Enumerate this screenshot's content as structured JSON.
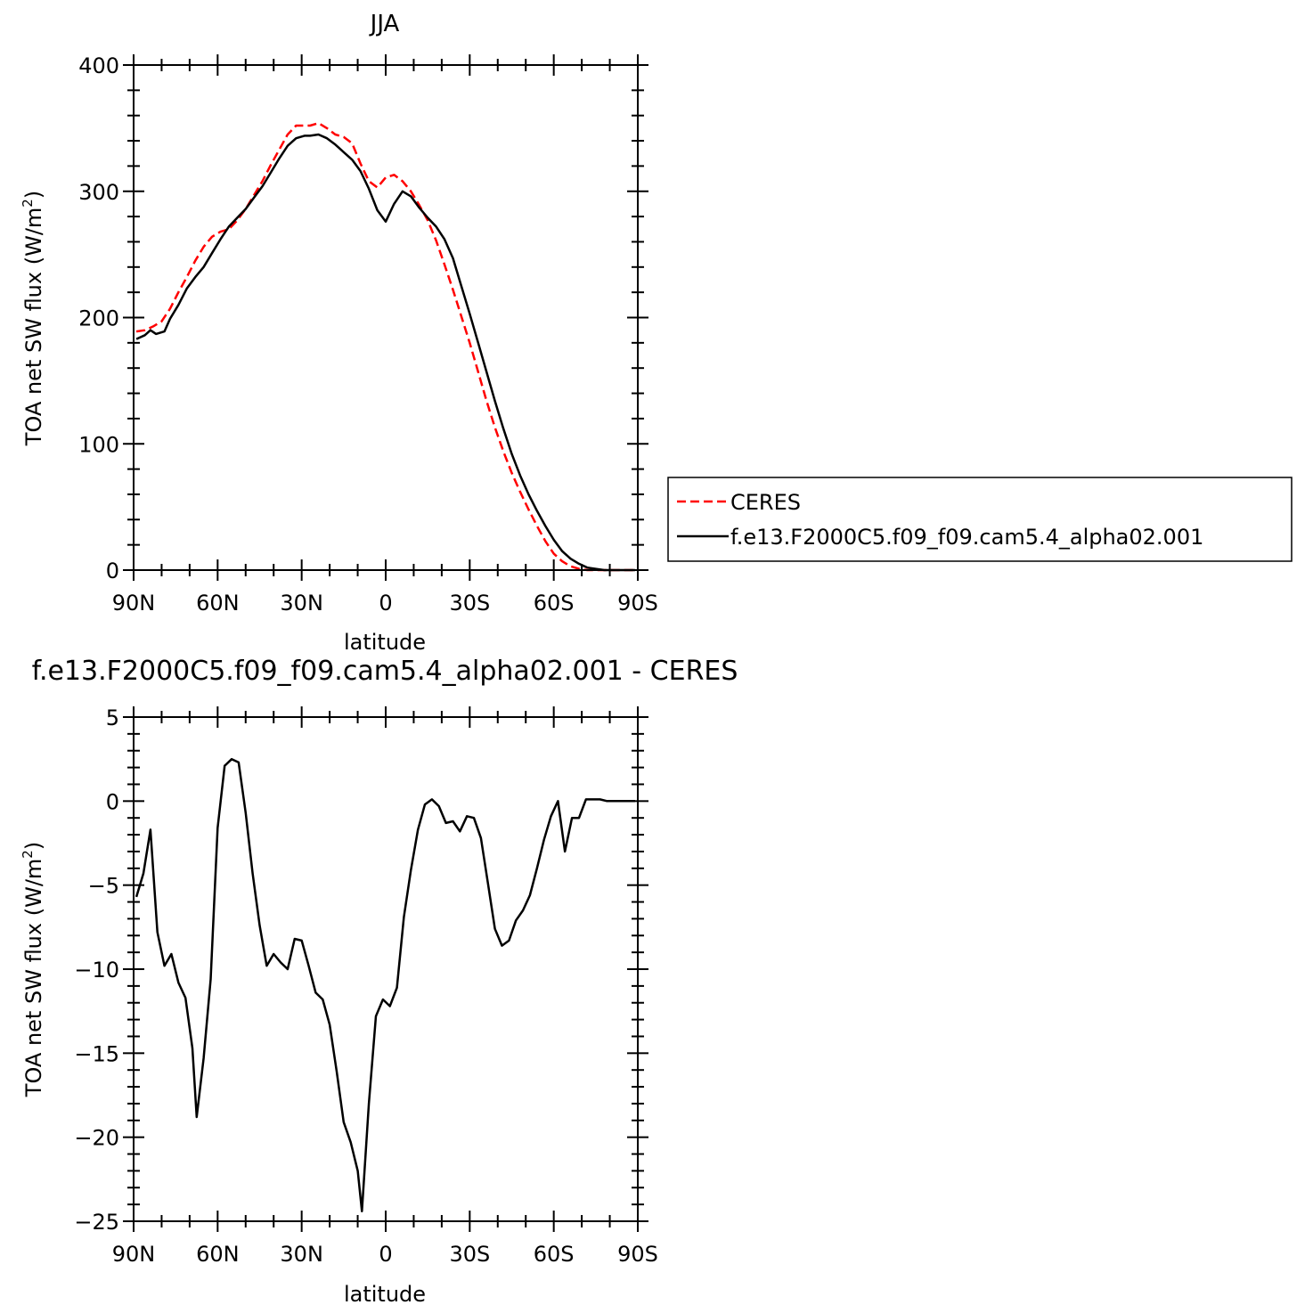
{
  "chart_data": [
    {
      "type": "line",
      "title": "JJA",
      "xlabel": "latitude",
      "ylabel": "TOA net SW flux (W/m²)",
      "ylabel_main": "TOA net SW flux (W/m",
      "ylabel_sup": "2",
      "ylabel_tail": ")",
      "xlim": [
        90,
        -90
      ],
      "ylim": [
        0,
        400
      ],
      "xticks": [
        {
          "value": 90,
          "label": "90N"
        },
        {
          "value": 60,
          "label": "60N"
        },
        {
          "value": 30,
          "label": "30N"
        },
        {
          "value": 0,
          "label": "0"
        },
        {
          "value": -30,
          "label": "30S"
        },
        {
          "value": -60,
          "label": "60S"
        },
        {
          "value": -90,
          "label": "90S"
        }
      ],
      "yticks": [
        {
          "value": 0,
          "label": "0"
        },
        {
          "value": 100,
          "label": "100"
        },
        {
          "value": 200,
          "label": "200"
        },
        {
          "value": 300,
          "label": "300"
        },
        {
          "value": 400,
          "label": "400"
        }
      ],
      "legend_position": "right",
      "series": [
        {
          "name": "CERES",
          "color": "#ff0000",
          "dash": "dashed",
          "points": [
            [
              89,
              189
            ],
            [
              86,
              190
            ],
            [
              83,
              193
            ],
            [
              80,
              197
            ],
            [
              77,
              207
            ],
            [
              74,
              220
            ],
            [
              71,
              232
            ],
            [
              68,
              245
            ],
            [
              65,
              256
            ],
            [
              62,
              264
            ],
            [
              59,
              268
            ],
            [
              56,
              270
            ],
            [
              53,
              277
            ],
            [
              50,
              286
            ],
            [
              47,
              297
            ],
            [
              44,
              308
            ],
            [
              41,
              321
            ],
            [
              38,
              333
            ],
            [
              35,
              345
            ],
            [
              32,
              352
            ],
            [
              29,
              352
            ],
            [
              27,
              352
            ],
            [
              24,
              354
            ],
            [
              21,
              350
            ],
            [
              18,
              345
            ],
            [
              15,
              343
            ],
            [
              12,
              338
            ],
            [
              9,
              322
            ],
            [
              6,
              308
            ],
            [
              3,
              303
            ],
            [
              0,
              311
            ],
            [
              -3,
              313
            ],
            [
              -6,
              308
            ],
            [
              -9,
              300
            ],
            [
              -12,
              289
            ],
            [
              -15,
              277
            ],
            [
              -18,
              261
            ],
            [
              -21,
              242
            ],
            [
              -24,
              222
            ],
            [
              -27,
              201
            ],
            [
              -30,
              180
            ],
            [
              -33,
              157
            ],
            [
              -36,
              134
            ],
            [
              -39,
              113
            ],
            [
              -42,
              94
            ],
            [
              -45,
              77
            ],
            [
              -48,
              62
            ],
            [
              -51,
              48
            ],
            [
              -54,
              35
            ],
            [
              -57,
              23
            ],
            [
              -60,
              13
            ],
            [
              -63,
              7
            ],
            [
              -66,
              3
            ],
            [
              -69,
              1
            ],
            [
              -72,
              0
            ],
            [
              -75,
              0
            ],
            [
              -78,
              0
            ],
            [
              -81,
              0
            ],
            [
              -84,
              0
            ],
            [
              -87,
              0
            ],
            [
              -89,
              0
            ]
          ]
        },
        {
          "name": "f.e13.F2000C5.f09_f09.cam5.4_alpha02.001",
          "color": "#000000",
          "dash": "solid",
          "points": [
            [
              89,
              183
            ],
            [
              86,
              186
            ],
            [
              84,
              190
            ],
            [
              82,
              187
            ],
            [
              79,
              189
            ],
            [
              77,
              199
            ],
            [
              74,
              210
            ],
            [
              71,
              223
            ],
            [
              68,
              232
            ],
            [
              65,
              240
            ],
            [
              62,
              251
            ],
            [
              59,
              262
            ],
            [
              56,
              272
            ],
            [
              53,
              279
            ],
            [
              50,
              286
            ],
            [
              47,
              295
            ],
            [
              44,
              304
            ],
            [
              41,
              315
            ],
            [
              38,
              326
            ],
            [
              35,
              336
            ],
            [
              32,
              342
            ],
            [
              29,
              344
            ],
            [
              27,
              344
            ],
            [
              24,
              345
            ],
            [
              21,
              342
            ],
            [
              18,
              337
            ],
            [
              15,
              331
            ],
            [
              12,
              325
            ],
            [
              9,
              316
            ],
            [
              6,
              302
            ],
            [
              3,
              285
            ],
            [
              0,
              276
            ],
            [
              -3,
              290
            ],
            [
              -6,
              300
            ],
            [
              -9,
              296
            ],
            [
              -12,
              287
            ],
            [
              -15,
              279
            ],
            [
              -18,
              272
            ],
            [
              -21,
              262
            ],
            [
              -24,
              247
            ],
            [
              -27,
              225
            ],
            [
              -30,
              203
            ],
            [
              -33,
              180
            ],
            [
              -36,
              157
            ],
            [
              -39,
              134
            ],
            [
              -42,
              112
            ],
            [
              -45,
              92
            ],
            [
              -48,
              75
            ],
            [
              -51,
              60
            ],
            [
              -54,
              47
            ],
            [
              -57,
              35
            ],
            [
              -60,
              24
            ],
            [
              -63,
              15
            ],
            [
              -66,
              9
            ],
            [
              -69,
              5
            ],
            [
              -72,
              2
            ],
            [
              -75,
              1
            ],
            [
              -78,
              0
            ],
            [
              -81,
              0
            ],
            [
              -84,
              0
            ],
            [
              -87,
              0
            ],
            [
              -89,
              0
            ]
          ]
        }
      ]
    },
    {
      "type": "line",
      "title": "f.e13.F2000C5.f09_f09.cam5.4_alpha02.001  -  CERES",
      "xlabel": "latitude",
      "ylabel": "TOA net SW flux (W/m²)",
      "ylabel_main": "TOA net SW flux (W/m",
      "ylabel_sup": "2",
      "ylabel_tail": ")",
      "xlim": [
        90,
        -90
      ],
      "ylim": [
        -25,
        5
      ],
      "xticks": [
        {
          "value": 90,
          "label": "90N"
        },
        {
          "value": 60,
          "label": "60N"
        },
        {
          "value": 30,
          "label": "30N"
        },
        {
          "value": 0,
          "label": "0"
        },
        {
          "value": -30,
          "label": "30S"
        },
        {
          "value": -60,
          "label": "60S"
        },
        {
          "value": -90,
          "label": "90S"
        }
      ],
      "yticks": [
        {
          "value": 5,
          "label": "5"
        },
        {
          "value": 0,
          "label": "0"
        },
        {
          "value": -5,
          "label": "−5"
        },
        {
          "value": -10,
          "label": "−10"
        },
        {
          "value": -15,
          "label": "−15"
        },
        {
          "value": -20,
          "label": "−20"
        },
        {
          "value": -25,
          "label": "−25"
        }
      ],
      "series": [
        {
          "color": "#000000",
          "dash": "solid",
          "points": [
            [
              89,
              -5.7
            ],
            [
              86.5,
              -4.3
            ],
            [
              84,
              -1.7
            ],
            [
              81.5,
              -7.8
            ],
            [
              79,
              -9.8
            ],
            [
              76.5,
              -9.1
            ],
            [
              74,
              -10.8
            ],
            [
              71.5,
              -11.7
            ],
            [
              69,
              -14.7
            ],
            [
              67.5,
              -18.8
            ],
            [
              65,
              -15.3
            ],
            [
              62.5,
              -10.6
            ],
            [
              60,
              -1.6
            ],
            [
              57.5,
              2.1
            ],
            [
              55,
              2.5
            ],
            [
              52.5,
              2.3
            ],
            [
              50,
              -0.7
            ],
            [
              47.5,
              -4.3
            ],
            [
              45,
              -7.4
            ],
            [
              42.5,
              -9.8
            ],
            [
              40,
              -9.1
            ],
            [
              37.5,
              -9.6
            ],
            [
              35,
              -10
            ],
            [
              32.5,
              -8.2
            ],
            [
              30,
              -8.3
            ],
            [
              27.5,
              -9.8
            ],
            [
              25,
              -11.4
            ],
            [
              22.5,
              -11.8
            ],
            [
              20,
              -13.3
            ],
            [
              17.5,
              -16.1
            ],
            [
              15,
              -19.1
            ],
            [
              12.5,
              -20.3
            ],
            [
              10,
              -22
            ],
            [
              8.5,
              -24.4
            ],
            [
              6,
              -18
            ],
            [
              3.5,
              -12.8
            ],
            [
              1,
              -11.8
            ],
            [
              -1.5,
              -12.2
            ],
            [
              -4,
              -11.1
            ],
            [
              -6.5,
              -6.9
            ],
            [
              -9,
              -4.1
            ],
            [
              -11.5,
              -1.7
            ],
            [
              -14,
              -0.2
            ],
            [
              -16.5,
              0.1
            ],
            [
              -19,
              -0.3
            ],
            [
              -21.5,
              -1.3
            ],
            [
              -24,
              -1.2
            ],
            [
              -26.5,
              -1.8
            ],
            [
              -29,
              -0.9
            ],
            [
              -31.5,
              -1
            ],
            [
              -34,
              -2.2
            ],
            [
              -36.5,
              -4.9
            ],
            [
              -39,
              -7.6
            ],
            [
              -41.5,
              -8.6
            ],
            [
              -44,
              -8.3
            ],
            [
              -46.5,
              -7.1
            ],
            [
              -49,
              -6.5
            ],
            [
              -51.5,
              -5.6
            ],
            [
              -54,
              -4
            ],
            [
              -56.5,
              -2.3
            ],
            [
              -59,
              -0.9
            ],
            [
              -61.5,
              0
            ],
            [
              -64,
              -3
            ],
            [
              -66.5,
              -1
            ],
            [
              -69,
              -1
            ],
            [
              -71.5,
              0.1
            ],
            [
              -74,
              0.1
            ],
            [
              -76.5,
              0.1
            ],
            [
              -79,
              0
            ],
            [
              -81.5,
              0
            ],
            [
              -84,
              0
            ],
            [
              -86.5,
              0
            ],
            [
              -89,
              0
            ]
          ]
        }
      ]
    }
  ]
}
